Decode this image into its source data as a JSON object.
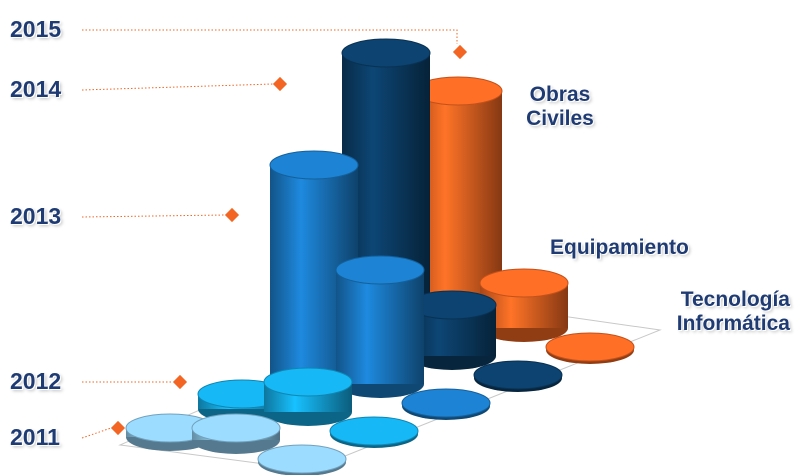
{
  "chart_data": {
    "type": "cylinder3d",
    "categories": [
      "Obras Civiles",
      "Equipamiento",
      "Tecnología Informática"
    ],
    "series": [
      {
        "name": "2011",
        "color": "#8ec9ec",
        "values": [
          3,
          4,
          1
        ]
      },
      {
        "name": "2012",
        "color": "#14a8e0",
        "values": [
          5,
          10,
          1
        ]
      },
      {
        "name": "2013",
        "color": "#1a78c2",
        "values": [
          72,
          38,
          1
        ]
      },
      {
        "name": "2014",
        "color": "#0b3d66",
        "values": [
          100,
          17,
          1
        ]
      },
      {
        "name": "2015",
        "color": "#f26522",
        "values": [
          78,
          15,
          1
        ]
      }
    ],
    "ylim": [
      0,
      100
    ]
  }
}
